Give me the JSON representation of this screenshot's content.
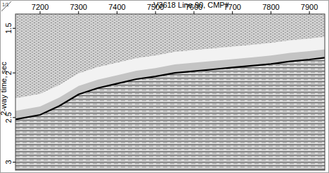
{
  "chart_data": {
    "type": "line",
    "title": "V3618 Line 90, CMP#",
    "y_label": "2-way time, sec",
    "annotations": [
      "1/1"
    ],
    "x": [
      7136,
      7200,
      7250,
      7300,
      7350,
      7400,
      7450,
      7500,
      7550,
      7600,
      7650,
      7700,
      7750,
      7800,
      7850,
      7900,
      7940
    ],
    "series": [
      {
        "color": "#000000",
        "line_style": "solid",
        "values": [
          2.52,
          2.47,
          2.37,
          2.24,
          2.17,
          2.12,
          2.07,
          2.04,
          2.0,
          1.98,
          1.96,
          1.94,
          1.92,
          1.9,
          1.87,
          1.85,
          1.83
        ]
      }
    ],
    "xlim": [
      7136,
      7940
    ],
    "xticks": [
      7200,
      7300,
      7400,
      7500,
      7600,
      7700,
      7800,
      7900
    ],
    "ylim": [
      1.34,
      3.09
    ],
    "yticks": [
      1.5,
      2,
      2.5,
      3
    ],
    "grid": false
  }
}
